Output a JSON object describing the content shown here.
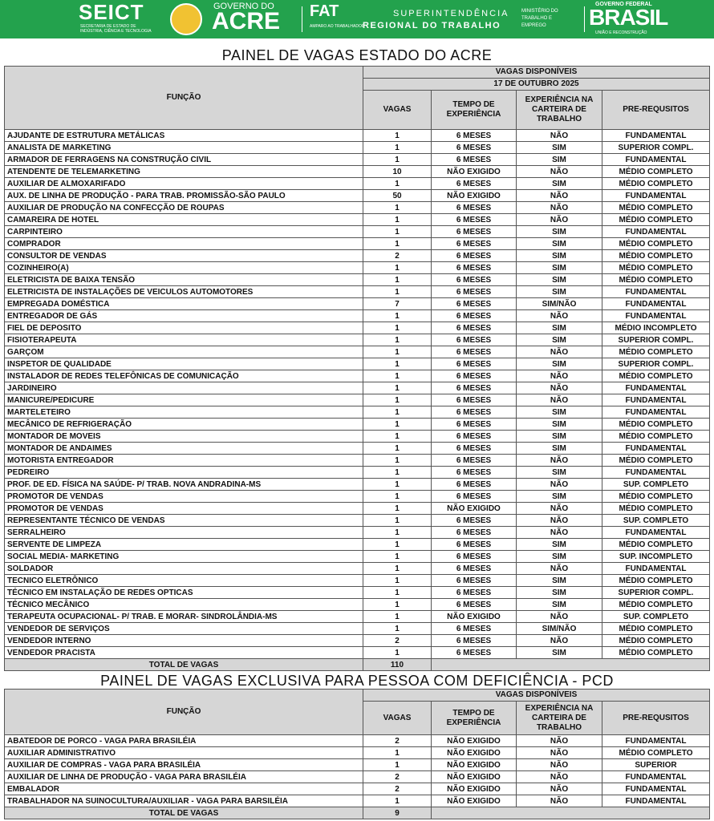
{
  "header": {
    "seict": "SEICT",
    "seict_subtitle": "SECRETARIA DE ESTADO DE INDÚSTRIA, CIÊNCIA E TECNOLOGIA",
    "governo_do": "GOVERNO DO",
    "acre": "ACRE",
    "fat": "FAT",
    "fat_subtitle": "AMPARO AO TRABALHADOR",
    "superintendencia": "SUPERINTENDÊNCIA",
    "regional": "REGIONAL DO TRABALHO",
    "ministerio": "MINISTÉRIO DO TRABALHO E EMPREGO",
    "governo_federal": "GOVERNO FEDERAL",
    "brasil": "BRASIL",
    "brasil_slogan": "UNIÃO E RECONSTRUÇÃO"
  },
  "tables": [
    {
      "title": "PAINEL DE VAGAS ESTADO DO ACRE",
      "header": {
        "funcao": "FUNÇÃO",
        "vagas_disponiveis": "VAGAS DISPONÍVEIS",
        "date": "17 DE OUTUBRO 2025",
        "columns": [
          "VAGAS",
          "TEMPO DE EXPERIÊNCIA",
          "EXPERIÊNCIA NA CARTEIRA DE TRABALHO",
          "PRE-REQUSITOS"
        ]
      },
      "rows": [
        [
          "AJUDANTE DE ESTRUTURA METÁLICAS",
          1,
          "6 MESES",
          "NÃO",
          "FUNDAMENTAL"
        ],
        [
          "ANALISTA DE MARKETING",
          1,
          "6 MESES",
          "SIM",
          "SUPERIOR COMPL."
        ],
        [
          "ARMADOR DE FERRAGENS NA CONSTRUÇÃO CIVIL",
          1,
          "6 MESES",
          "SIM",
          "FUNDAMENTAL"
        ],
        [
          "ATENDENTE DE TELEMARKETING",
          10,
          "NÃO EXIGIDO",
          "NÃO",
          "MÉDIO COMPLETO"
        ],
        [
          "AUXILIAR DE ALMOXARIFADO",
          1,
          "6 MESES",
          "SIM",
          "MÉDIO COMPLETO"
        ],
        [
          "AUX. DE LINHA DE PRODUÇÃO - PARA TRAB. PROMISSÃO-SÃO PAULO",
          50,
          "NÃO EXIGIDO",
          "NÃO",
          "FUNDAMENTAL"
        ],
        [
          "AUXILIAR DE PRODUÇÃO NA CONFECÇÃO DE ROUPAS",
          1,
          "6 MESES",
          "NÃO",
          "MÉDIO COMPLETO"
        ],
        [
          "CAMAREIRA DE HOTEL",
          1,
          "6 MESES",
          "NÃO",
          "MÉDIO COMPLETO"
        ],
        [
          "CARPINTEIRO",
          1,
          "6 MESES",
          "SIM",
          "FUNDAMENTAL"
        ],
        [
          "COMPRADOR",
          1,
          "6 MESES",
          "SIM",
          "MÉDIO COMPLETO"
        ],
        [
          "CONSULTOR DE VENDAS",
          2,
          "6 MESES",
          "SIM",
          "MÉDIO COMPLETO"
        ],
        [
          "COZINHEIRO(A)",
          1,
          "6 MESES",
          "SIM",
          "MÉDIO COMPLETO"
        ],
        [
          "ELETRICISTA DE BAIXA TENSÃO",
          1,
          "6 MESES",
          "SIM",
          "MÉDIO COMPLETO"
        ],
        [
          "ELETRICISTA DE INSTALAÇÕES DE VEICULOS AUTOMOTORES",
          1,
          "6 MESES",
          "SIM",
          "FUNDAMENTAL"
        ],
        [
          "EMPREGADA DOMÉSTICA",
          7,
          "6 MESES",
          "SIM/NÃO",
          "FUNDAMENTAL"
        ],
        [
          "ENTREGADOR DE GÁS",
          1,
          "6 MESES",
          "NÃO",
          "FUNDAMENTAL"
        ],
        [
          "FIEL DE DEPOSITO",
          1,
          "6 MESES",
          "SIM",
          "MÉDIO INCOMPLETO"
        ],
        [
          "FISIOTERAPEUTA",
          1,
          "6 MESES",
          "SIM",
          "SUPERIOR COMPL."
        ],
        [
          "GARÇOM",
          1,
          "6 MESES",
          "NÃO",
          "MÉDIO COMPLETO"
        ],
        [
          "INSPETOR DE QUALIDADE",
          1,
          "6 MESES",
          "SIM",
          "SUPERIOR COMPL."
        ],
        [
          "INSTALADOR DE REDES TELEFÔNICAS  DE COMUNICAÇÃO",
          1,
          "6 MESES",
          "NÃO",
          "MÉDIO COMPLETO"
        ],
        [
          "JARDINEIRO",
          1,
          "6 MESES",
          "NÃO",
          "FUNDAMENTAL"
        ],
        [
          "MANICURE/PEDICURE",
          1,
          "6 MESES",
          "NÃO",
          "FUNDAMENTAL"
        ],
        [
          "MARTELETEIRO",
          1,
          "6 MESES",
          "SIM",
          "FUNDAMENTAL"
        ],
        [
          "MECÂNICO DE REFRIGERAÇÃO",
          1,
          "6 MESES",
          "SIM",
          "MÉDIO COMPLETO"
        ],
        [
          "MONTADOR DE MOVEIS",
          1,
          "6 MESES",
          "SIM",
          "MÉDIO COMPLETO"
        ],
        [
          "MONTADOR DE ANDAIMES",
          1,
          "6 MESES",
          "SIM",
          "FUNDAMENTAL"
        ],
        [
          "MOTORISTA ENTREGADOR",
          1,
          "6 MESES",
          "NÃO",
          "MÉDIO COMPLETO"
        ],
        [
          "PEDREIRO",
          1,
          "6 MESES",
          "SIM",
          "FUNDAMENTAL"
        ],
        [
          "PROF. DE ED. FÍSICA NA SAÚDE- P/ TRAB. NOVA ANDRADINA-MS",
          1,
          "6 MESES",
          "NÃO",
          "SUP. COMPLETO"
        ],
        [
          "PROMOTOR DE VENDAS",
          1,
          "6 MESES",
          "SIM",
          "MÉDIO COMPLETO"
        ],
        [
          "PROMOTOR DE VENDAS",
          1,
          "NÃO EXIGIDO",
          "NÃO",
          "MÉDIO COMPLETO"
        ],
        [
          "REPRESENTANTE TÉCNICO DE VENDAS",
          1,
          "6 MESES",
          "NÃO",
          "SUP. COMPLETO"
        ],
        [
          "SERRALHEIRO",
          1,
          "6 MESES",
          "NÃO",
          "FUNDAMENTAL"
        ],
        [
          "SERVENTE DE LIMPEZA",
          1,
          "6 MESES",
          "SIM",
          "MÉDIO COMPLETO"
        ],
        [
          "SOCIAL MEDIA- MARKETING",
          1,
          "6 MESES",
          "SIM",
          "SUP. INCOMPLETO"
        ],
        [
          "SOLDADOR",
          1,
          "6 MESES",
          "NÃO",
          "FUNDAMENTAL"
        ],
        [
          "TECNICO ELETRÔNICO",
          1,
          "6 MESES",
          "SIM",
          "MÉDIO COMPLETO"
        ],
        [
          "TÉCNICO EM INSTALAÇÃO DE REDES OPTICAS",
          1,
          "6 MESES",
          "SIM",
          "SUPERIOR COMPL."
        ],
        [
          "TÉCNICO MECÂNICO",
          1,
          "6 MESES",
          "SIM",
          "MÉDIO COMPLETO"
        ],
        [
          "TERAPEUTA OCUPACIONAL- P/ TRAB. E MORAR- SINDROLÂNDIA-MS",
          1,
          "NÃO EXIGIDO",
          "NÃO",
          "SUP. COMPLETO"
        ],
        [
          "VENDEDOR DE SERVIÇOS",
          1,
          "6 MESES",
          "SIM/NÃO",
          "MÉDIO COMPLETO"
        ],
        [
          "VENDEDOR INTERNO",
          2,
          "6 MESES",
          "NÃO",
          "MÉDIO COMPLETO"
        ],
        [
          "VENDEDOR PRACISTA",
          1,
          "6 MESES",
          "SIM",
          "MÉDIO COMPLETO"
        ]
      ],
      "total": {
        "label": "TOTAL DE VAGAS",
        "value": 110
      }
    },
    {
      "title": "PAINEL DE VAGAS EXCLUSIVA PARA PESSOA COM DEFICIÊNCIA - PCD",
      "header": {
        "funcao": "FUNÇÃO",
        "vagas_disponiveis": "VAGAS DISPONÍVEIS",
        "columns": [
          "VAGAS",
          "TEMPO DE EXPERIÊNCIA",
          "EXPERIÊNCIA NA CARTEIRA DE TRABALHO",
          "PRE-REQUSITOS"
        ]
      },
      "rows": [
        [
          "ABATEDOR DE PORCO - VAGA PARA BRASILÉIA",
          2,
          "NÃO EXIGIDO",
          "NÃO",
          "FUNDAMENTAL"
        ],
        [
          "AUXILIAR ADMINISTRATIVO",
          1,
          "NÃO EXIGIDO",
          "NÃO",
          "MÉDIO COMPLETO"
        ],
        [
          "AUXILIAR DE COMPRAS - VAGA PARA BRASILÉIA",
          1,
          "NÃO EXIGIDO",
          "NÃO",
          "SUPERIOR"
        ],
        [
          "AUXILIAR DE LINHA DE PRODUÇÃO - VAGA PARA BRASILÉIA",
          2,
          "NÃO EXIGIDO",
          "NÃO",
          "FUNDAMENTAL"
        ],
        [
          "EMBALADOR",
          2,
          "NÃO EXIGIDO",
          "NÃO",
          "FUNDAMENTAL"
        ],
        [
          "TRABALHADOR NA SUINOCULTURA/AUXILIAR - VAGA PARA BARSILÉIA",
          1,
          "NÃO EXIGIDO",
          "NÃO",
          "FUNDAMENTAL"
        ]
      ],
      "total": {
        "label": "TOTAL DE VAGAS",
        "value": 9
      }
    }
  ]
}
